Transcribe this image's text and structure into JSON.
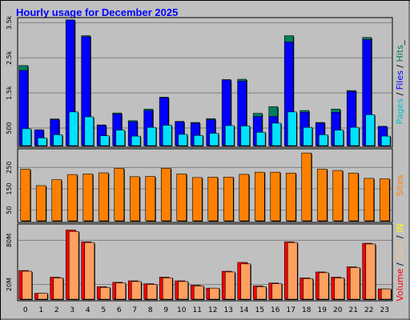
{
  "chart_data": {
    "title": "Hourly usage for December 2025",
    "type": "bar",
    "x": [
      "0",
      "1",
      "2",
      "3",
      "4",
      "5",
      "6",
      "7",
      "8",
      "9",
      "10",
      "11",
      "12",
      "13",
      "14",
      "15",
      "16",
      "17",
      "18",
      "19",
      "20",
      "21",
      "22",
      "23"
    ],
    "panels": [
      {
        "id": "hits",
        "type": "bar",
        "ylim": [
          0,
          3600
        ],
        "ticks": [
          {
            "value": 500,
            "label": "500"
          },
          {
            "value": 1500,
            "label": "1.5k"
          },
          {
            "value": 2500,
            "label": "2.5k"
          },
          {
            "value": 3500,
            "label": "3.5k"
          }
        ],
        "legend": [
          {
            "text": "Pages",
            "color": "#00c0d0"
          },
          {
            "text": " / ",
            "color": "#000000"
          },
          {
            "text": "Files",
            "color": "#0000ff"
          },
          {
            "text": " / ",
            "color": "#000000"
          },
          {
            "text": "Hits",
            "color": "#008040"
          },
          {
            "text": "_",
            "color": "#000000"
          }
        ],
        "series": [
          {
            "name": "Hits",
            "color": "#008060",
            "values": [
              2280,
              450,
              760,
              3580,
              3130,
              590,
              930,
              710,
              1040,
              1380,
              690,
              660,
              770,
              1880,
              1890,
              920,
              1110,
              3130,
              1000,
              660,
              1040,
              1570,
              3080,
              550
            ]
          },
          {
            "name": "Files",
            "color": "#0000ff",
            "values": [
              2140,
              450,
              740,
              3580,
              3100,
              580,
              900,
              680,
              1000,
              1360,
              680,
              640,
              740,
              1870,
              1840,
              830,
              830,
              2950,
              950,
              640,
              950,
              1540,
              3020,
              540
            ]
          },
          {
            "name": "Pages",
            "color": "#00e0ff",
            "values": [
              480,
              220,
              310,
              960,
              820,
              280,
              440,
              270,
              520,
              580,
              320,
              290,
              350,
              570,
              560,
              380,
              640,
              960,
              520,
              310,
              440,
              520,
              880,
              270
            ]
          }
        ]
      },
      {
        "id": "sites",
        "type": "bar",
        "ylim": [
          0,
          330
        ],
        "ticks": [
          {
            "value": 50,
            "label": "50"
          },
          {
            "value": 150,
            "label": "150"
          },
          {
            "value": 250,
            "label": "250"
          }
        ],
        "legend": [
          {
            "text": "Sites",
            "color": "#ff8000"
          }
        ],
        "series": [
          {
            "name": "Sites",
            "color": "#ff8000",
            "values": [
              242,
              165,
              193,
              217,
              220,
              225,
              246,
              207,
              208,
              246,
              220,
              203,
              205,
              205,
              218,
              228,
              228,
              224,
              318,
              242,
              236,
              224,
              199,
              197
            ]
          }
        ]
      },
      {
        "id": "volume",
        "type": "bar",
        "ylim": [
          0,
          100
        ],
        "ticks": [
          {
            "value": 20,
            "label": "20M"
          },
          {
            "value": 80,
            "label": "80M"
          }
        ],
        "legend": [
          {
            "text": "Volume",
            "color": "#ff0000"
          },
          {
            "text": " / ",
            "color": "#000000"
          },
          {
            "text": "OUT",
            "color": "#ffc080"
          },
          {
            "text": " / ",
            "color": "#000000"
          },
          {
            "text": "IN",
            "color": "#ffff00"
          }
        ],
        "series": [
          {
            "name": "Volume",
            "color": "#ff0000",
            "values": [
              39,
              8,
              30,
              94,
              78,
              17,
              23,
              25,
              21,
              30,
              25,
              19,
              15,
              38,
              50,
              18,
              22,
              78,
              29,
              37,
              30,
              44,
              76,
              14
            ]
          },
          {
            "name": "OUT",
            "color": "#ffa060",
            "values": [
              38,
              8,
              29,
              92,
              77,
              16,
              22,
              24,
              20,
              29,
              24,
              18,
              15,
              37,
              48,
              17,
              21,
              77,
              28,
              36,
              29,
              43,
              75,
              14
            ]
          }
        ]
      }
    ]
  }
}
